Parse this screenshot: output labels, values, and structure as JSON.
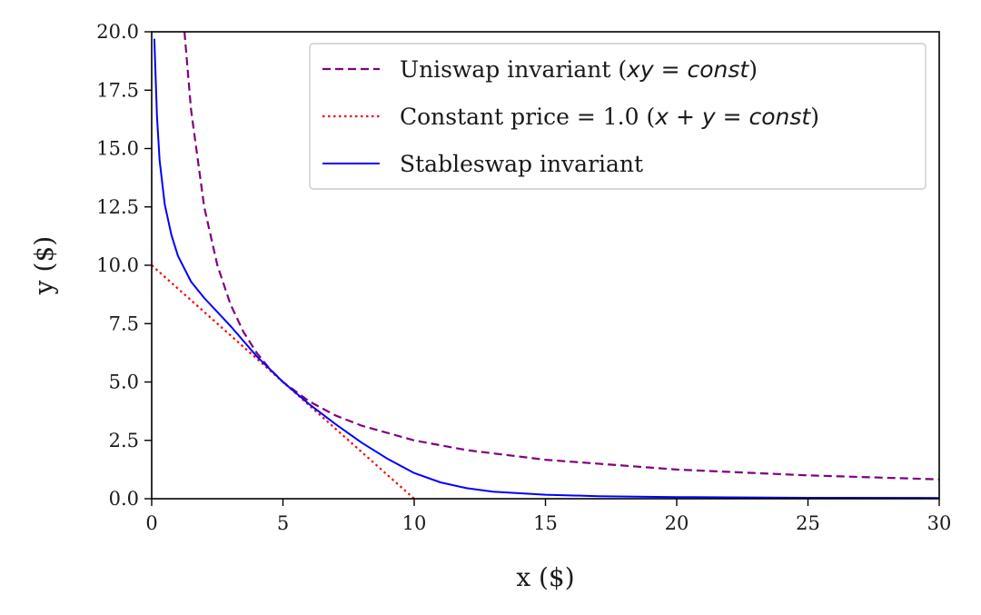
{
  "chart_data": {
    "type": "line",
    "title": "",
    "xlabel": "x ($)",
    "ylabel": "y ($)",
    "xlim": [
      0,
      30
    ],
    "ylim": [
      0,
      20
    ],
    "xticks": [
      0,
      5,
      10,
      15,
      20,
      25,
      30
    ],
    "xtick_labels": [
      "0",
      "5",
      "10",
      "15",
      "20",
      "25",
      "30"
    ],
    "yticks": [
      0,
      2.5,
      5,
      7.5,
      10,
      12.5,
      15,
      17.5,
      20
    ],
    "ytick_labels": [
      "0.0",
      "2.5",
      "5.0",
      "7.5",
      "10.0",
      "12.5",
      "15.0",
      "17.5",
      "20.0"
    ],
    "grid": false,
    "legend_position": "top-right",
    "series": [
      {
        "name": "Uniswap invariant (xy = const)",
        "legend_prefix": "Uniswap invariant (",
        "legend_math": "xy = const",
        "legend_suffix": ")",
        "style": "dashed",
        "color": "#800080",
        "x": [
          1.25,
          1.5,
          2,
          2.5,
          3,
          3.5,
          4,
          4.5,
          5,
          6,
          7,
          8,
          10,
          12,
          15,
          20,
          25,
          30
        ],
        "y": [
          20,
          16.67,
          12.5,
          10,
          8.33,
          7.14,
          6.25,
          5.56,
          5,
          4.17,
          3.57,
          3.13,
          2.5,
          2.08,
          1.67,
          1.25,
          1,
          0.83
        ]
      },
      {
        "name": "Constant price = 1.0 (x + y = const)",
        "legend_prefix": "Constant price = 1.0 (",
        "legend_math": "x + y = const",
        "legend_suffix": ")",
        "style": "dotted",
        "color": "#ff0000",
        "x": [
          0,
          10
        ],
        "y": [
          10,
          0
        ]
      },
      {
        "name": "Stableswap invariant",
        "legend_prefix": "Stableswap invariant",
        "legend_math": "",
        "legend_suffix": "",
        "style": "solid",
        "color": "#0000ff",
        "x": [
          0.1,
          0.2,
          0.3,
          0.5,
          0.75,
          1,
          1.5,
          2,
          3,
          4,
          5,
          6,
          7,
          8,
          9,
          10,
          11,
          12,
          13,
          15,
          17,
          20,
          25,
          30
        ],
        "y": [
          19.7,
          16.4,
          14.5,
          12.6,
          11.3,
          10.4,
          9.3,
          8.6,
          7.4,
          6.1,
          5.0,
          4.05,
          3.2,
          2.4,
          1.7,
          1.1,
          0.7,
          0.45,
          0.3,
          0.17,
          0.11,
          0.07,
          0.04,
          0.03
        ]
      }
    ]
  }
}
